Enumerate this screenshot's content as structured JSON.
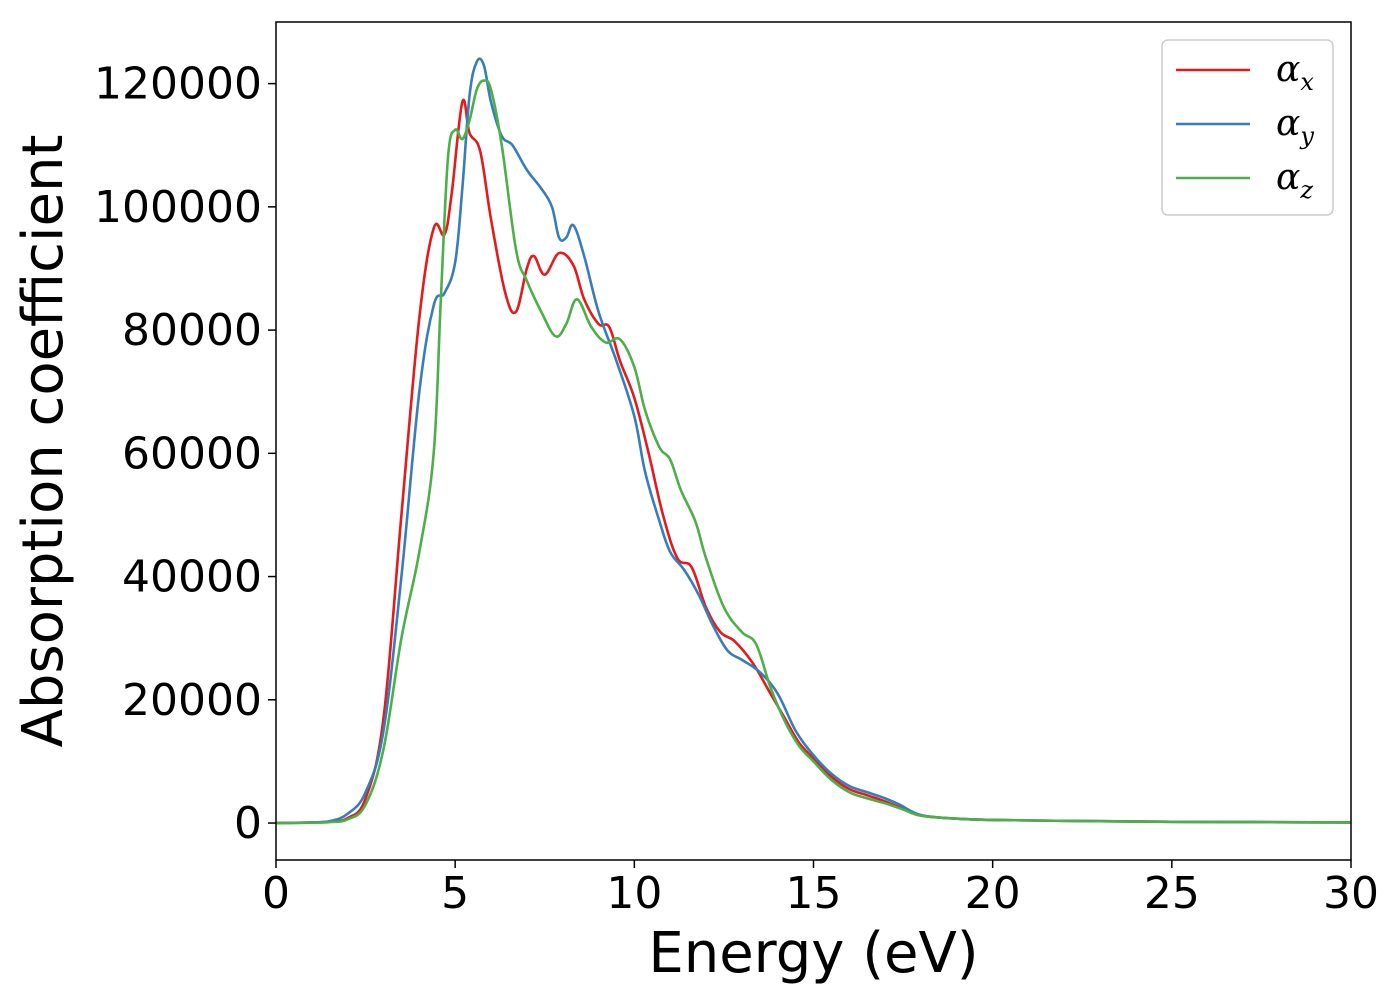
{
  "chart_data": {
    "type": "line",
    "title": "",
    "xlabel": "Energy (eV)",
    "ylabel": "Absorption coefficient",
    "xlim": [
      0,
      30
    ],
    "ylim": [
      -6000,
      130000
    ],
    "xticks": [
      0,
      5,
      10,
      15,
      20,
      25,
      30
    ],
    "yticks": [
      0,
      20000,
      40000,
      60000,
      80000,
      100000,
      120000
    ],
    "x_tick_labels": [
      "0",
      "5",
      "10",
      "15",
      "20",
      "25",
      "30"
    ],
    "y_tick_labels": [
      "0",
      "20000",
      "40000",
      "60000",
      "80000",
      "100000",
      "120000"
    ],
    "grid": false,
    "legend_position": "top-right",
    "series": [
      {
        "name": "α",
        "subscript": "x",
        "color": "#e41a1c",
        "points": [
          [
            0,
            0
          ],
          [
            1,
            100
          ],
          [
            1.5,
            250
          ],
          [
            2,
            800
          ],
          [
            2.5,
            4000
          ],
          [
            3,
            17000
          ],
          [
            3.5,
            50000
          ],
          [
            4,
            82000
          ],
          [
            4.4,
            96500
          ],
          [
            4.7,
            95500
          ],
          [
            4.9,
            102000
          ],
          [
            5.2,
            117000
          ],
          [
            5.4,
            112000
          ],
          [
            5.7,
            109000
          ],
          [
            6,
            98000
          ],
          [
            6.4,
            86000
          ],
          [
            6.7,
            83000
          ],
          [
            7,
            90000
          ],
          [
            7.2,
            92000
          ],
          [
            7.5,
            89000
          ],
          [
            7.9,
            92500
          ],
          [
            8.3,
            90500
          ],
          [
            8.6,
            85000
          ],
          [
            9,
            81000
          ],
          [
            9.3,
            80500
          ],
          [
            9.6,
            75000
          ],
          [
            10,
            69000
          ],
          [
            10.4,
            60000
          ],
          [
            10.8,
            50000
          ],
          [
            11.2,
            43000
          ],
          [
            11.6,
            41500
          ],
          [
            12,
            35000
          ],
          [
            12.4,
            31000
          ],
          [
            12.8,
            29500
          ],
          [
            13.3,
            26000
          ],
          [
            13.8,
            21000
          ],
          [
            14.2,
            17000
          ],
          [
            14.6,
            13000
          ],
          [
            15,
            10500
          ],
          [
            15.5,
            7500
          ],
          [
            16,
            5500
          ],
          [
            16.5,
            4500
          ],
          [
            17,
            3500
          ],
          [
            17.5,
            2300
          ],
          [
            18,
            1200
          ],
          [
            19,
            700
          ],
          [
            20,
            500
          ],
          [
            22,
            350
          ],
          [
            25,
            200
          ],
          [
            30,
            100
          ]
        ]
      },
      {
        "name": "α",
        "subscript": "y",
        "color": "#377eb8",
        "points": [
          [
            0,
            0
          ],
          [
            1,
            100
          ],
          [
            1.5,
            300
          ],
          [
            2,
            1500
          ],
          [
            2.5,
            5000
          ],
          [
            3,
            15000
          ],
          [
            3.5,
            40000
          ],
          [
            4,
            70000
          ],
          [
            4.4,
            84000
          ],
          [
            4.7,
            86000
          ],
          [
            5,
            91000
          ],
          [
            5.2,
            103000
          ],
          [
            5.4,
            118000
          ],
          [
            5.6,
            123500
          ],
          [
            5.8,
            123000
          ],
          [
            6,
            117000
          ],
          [
            6.3,
            111500
          ],
          [
            6.6,
            110000
          ],
          [
            7,
            106000
          ],
          [
            7.4,
            103000
          ],
          [
            7.7,
            100000
          ],
          [
            7.9,
            95000
          ],
          [
            8.1,
            95000
          ],
          [
            8.3,
            97000
          ],
          [
            8.6,
            92000
          ],
          [
            9,
            83000
          ],
          [
            9.5,
            75000
          ],
          [
            10,
            66000
          ],
          [
            10.3,
            57000
          ],
          [
            10.7,
            49000
          ],
          [
            11,
            44000
          ],
          [
            11.4,
            41000
          ],
          [
            11.8,
            37000
          ],
          [
            12.2,
            32000
          ],
          [
            12.6,
            28000
          ],
          [
            13,
            26500
          ],
          [
            13.5,
            24500
          ],
          [
            14,
            21000
          ],
          [
            14.5,
            15000
          ],
          [
            15,
            11000
          ],
          [
            15.5,
            8000
          ],
          [
            16,
            6000
          ],
          [
            16.5,
            5000
          ],
          [
            17,
            4000
          ],
          [
            17.4,
            3000
          ],
          [
            18,
            1300
          ],
          [
            19,
            700
          ],
          [
            20,
            500
          ],
          [
            22,
            350
          ],
          [
            25,
            200
          ],
          [
            30,
            100
          ]
        ]
      },
      {
        "name": "α",
        "subscript": "z",
        "color": "#4daf4a",
        "points": [
          [
            0,
            0
          ],
          [
            1,
            50
          ],
          [
            1.5,
            150
          ],
          [
            2,
            600
          ],
          [
            2.5,
            3000
          ],
          [
            3,
            12000
          ],
          [
            3.5,
            30000
          ],
          [
            4,
            44000
          ],
          [
            4.4,
            60000
          ],
          [
            4.6,
            85000
          ],
          [
            4.8,
            108000
          ],
          [
            5,
            112500
          ],
          [
            5.2,
            111000
          ],
          [
            5.4,
            114000
          ],
          [
            5.6,
            119000
          ],
          [
            5.8,
            120500
          ],
          [
            6,
            119000
          ],
          [
            6.3,
            110000
          ],
          [
            6.7,
            93000
          ],
          [
            7,
            88000
          ],
          [
            7.4,
            83000
          ],
          [
            7.8,
            79000
          ],
          [
            8.1,
            81000
          ],
          [
            8.4,
            85000
          ],
          [
            8.8,
            80500
          ],
          [
            9.2,
            78000
          ],
          [
            9.6,
            78500
          ],
          [
            10,
            74000
          ],
          [
            10.3,
            67000
          ],
          [
            10.7,
            61000
          ],
          [
            11,
            59000
          ],
          [
            11.3,
            54000
          ],
          [
            11.7,
            49000
          ],
          [
            12,
            43000
          ],
          [
            12.5,
            35000
          ],
          [
            13,
            31000
          ],
          [
            13.4,
            29000
          ],
          [
            13.8,
            22000
          ],
          [
            14.2,
            16500
          ],
          [
            14.6,
            12500
          ],
          [
            15,
            10000
          ],
          [
            15.5,
            7000
          ],
          [
            16,
            5000
          ],
          [
            16.5,
            4000
          ],
          [
            17,
            3200
          ],
          [
            17.5,
            2200
          ],
          [
            18,
            1200
          ],
          [
            19,
            700
          ],
          [
            20,
            500
          ],
          [
            22,
            350
          ],
          [
            25,
            200
          ],
          [
            30,
            100
          ]
        ]
      }
    ]
  }
}
